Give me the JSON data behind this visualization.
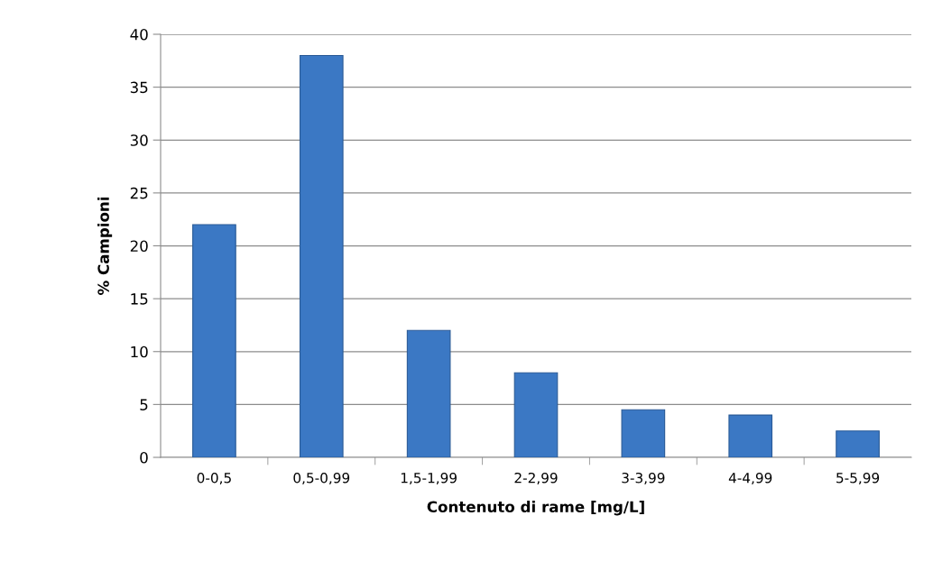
{
  "chart_data": {
    "type": "bar",
    "xlabel": "Contenuto di rame [mg/L]",
    "ylabel": "% Campioni",
    "categories": [
      "0-0,5",
      "0,5-0,99",
      "1,5-1,99",
      "2-2,99",
      "3-3,99",
      "4-4,99",
      "5-5,99"
    ],
    "values": [
      22,
      38,
      12,
      8,
      4.5,
      4,
      2.5
    ],
    "color": "#3b78c4",
    "ylim": [
      0,
      40
    ],
    "yticks": [
      0,
      5,
      10,
      15,
      20,
      25,
      30,
      35,
      40
    ],
    "grid": "y",
    "legend": false
  }
}
